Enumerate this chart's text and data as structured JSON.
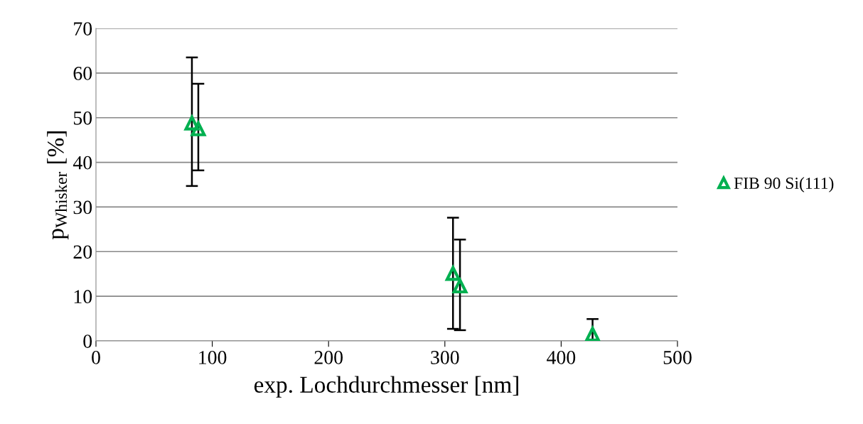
{
  "chart_data": {
    "type": "scatter",
    "xlabel": "exp. Lochdurchmesser [nm]",
    "ylabel": "p$_{Whisker}$ [%]",
    "xlim": [
      0,
      500
    ],
    "xticks": [
      0,
      100,
      200,
      300,
      400,
      500
    ],
    "ylim": [
      0,
      70
    ],
    "yticks": [
      0,
      10,
      20,
      30,
      40,
      50,
      60,
      70
    ],
    "grid": "y",
    "legend": "right",
    "marker": "triangle",
    "series": [
      {
        "name": "FIB 90 Si(111)",
        "color": "#00b050",
        "x": [
          82.5,
          88,
          307,
          313,
          427
        ],
        "values": [
          48.8,
          47.5,
          15.1,
          12.3,
          1.5
        ],
        "errors": [
          [
            34.7,
            63.5
          ],
          [
            38.2,
            57.6
          ],
          [
            2.7,
            27.6
          ],
          [
            2.4,
            22.7
          ],
          [
            0,
            4.9
          ]
        ]
      }
    ]
  }
}
